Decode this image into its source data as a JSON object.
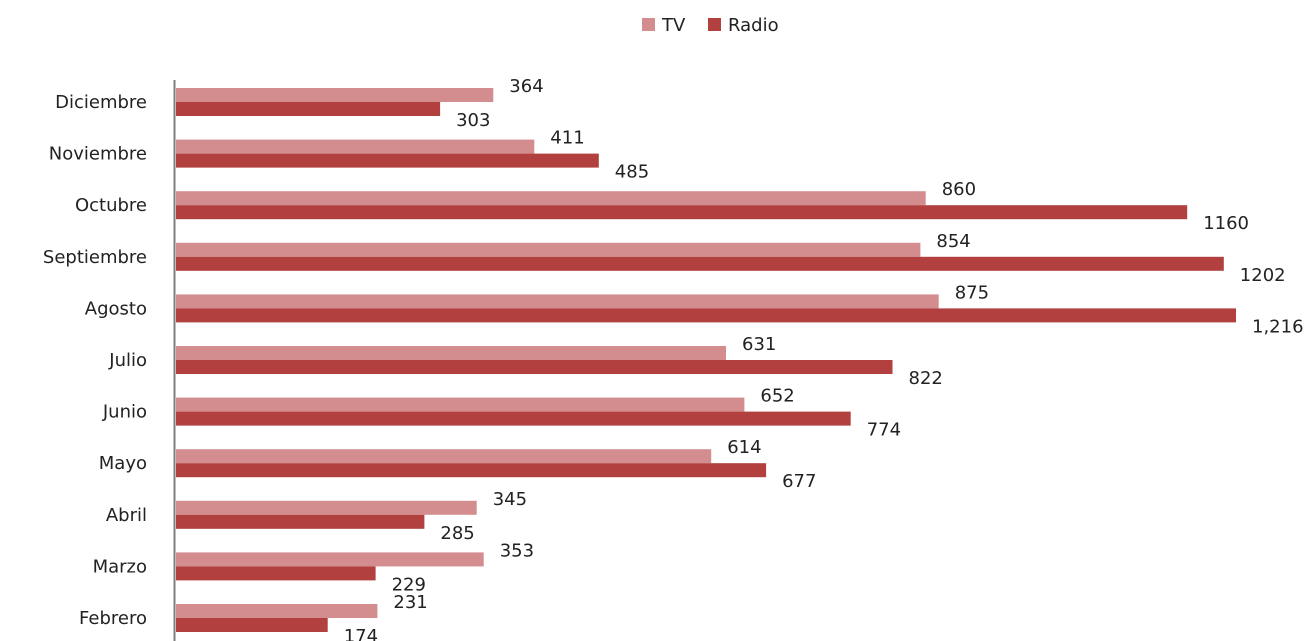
{
  "chart_data": {
    "type": "bar",
    "orientation": "horizontal",
    "categories": [
      "Diciembre",
      "Noviembre",
      "Octubre",
      "Septiembre",
      "Agosto",
      "Julio",
      "Junio",
      "Mayo",
      "Abril",
      "Marzo",
      "Febrero"
    ],
    "series": [
      {
        "name": "TV",
        "color": "#d48d8f",
        "values": [
          364,
          411,
          860,
          854,
          875,
          631,
          652,
          614,
          345,
          353,
          231
        ],
        "labels": [
          "364",
          "411",
          "860",
          "854",
          "875",
          "631",
          "652",
          "614",
          "345",
          "353",
          "231"
        ]
      },
      {
        "name": "Radio",
        "color": "#b1403f",
        "values": [
          303,
          485,
          1160,
          1202,
          1216,
          822,
          774,
          677,
          285,
          229,
          174
        ],
        "labels": [
          "303",
          "485",
          "1160",
          "1202",
          "1,216",
          "822",
          "774",
          "677",
          "285",
          "229",
          "174"
        ]
      }
    ],
    "xlim": [
      0,
      1216
    ],
    "grid": false,
    "legend": "top-center"
  }
}
